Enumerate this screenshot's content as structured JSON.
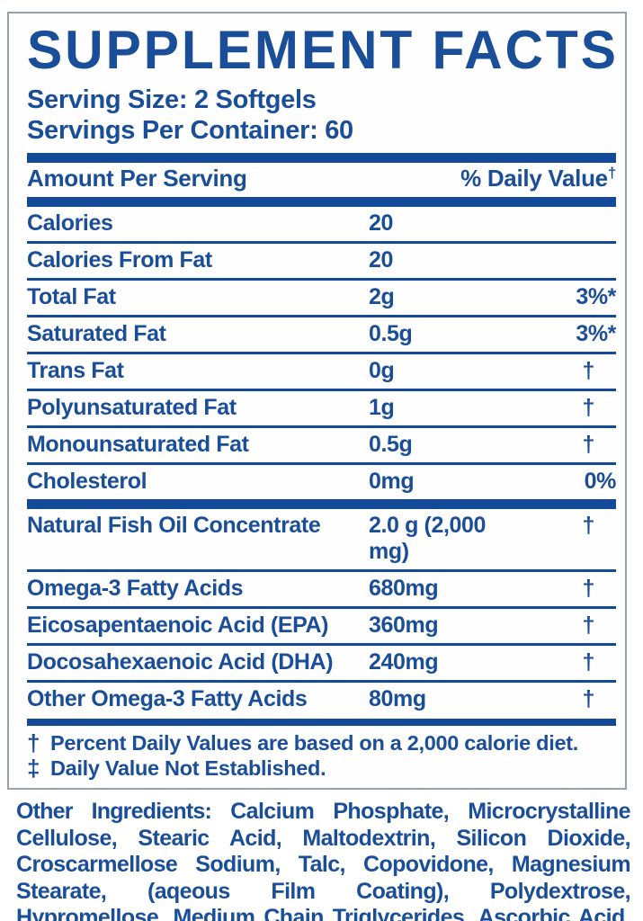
{
  "colors": {
    "accent_blue": "#1b4e98",
    "rule_blue": "#134a97",
    "border_gray": "#98a0ac",
    "background": "#ffffff"
  },
  "label": {
    "title": "SUPPLEMENT FACTS",
    "serving_size": "Serving Size: 2 Softgels",
    "servings_per_container": "Servings Per Container: 60",
    "columns": {
      "amount_header": "Amount Per Serving",
      "daily_value_header": "% Daily Value",
      "daily_value_header_symbol": "†"
    },
    "rows": [
      {
        "name": "Calories",
        "amount": "20",
        "dv": ""
      },
      {
        "name": "Calories From Fat",
        "amount": "20",
        "dv": ""
      },
      {
        "name": "Total Fat",
        "amount": "2g",
        "dv": "3%*"
      },
      {
        "name": "Saturated Fat",
        "amount": "0.5g",
        "dv": "3%*"
      },
      {
        "name": "Trans Fat",
        "amount": "0g",
        "dv": "†"
      },
      {
        "name": "Polyunsaturated Fat",
        "amount": "1g",
        "dv": "†"
      },
      {
        "name": "Monounsaturated Fat",
        "amount": "0.5g",
        "dv": "†"
      },
      {
        "name": "Cholesterol",
        "amount": "0mg",
        "dv": "0%"
      },
      {
        "name": "Natural Fish Oil Concentrate",
        "amount": "2.0 g (2,000 mg)",
        "dv": "†"
      },
      {
        "name": "Omega-3 Fatty Acids",
        "amount": "680mg",
        "dv": "†"
      },
      {
        "name": "Eicosapentaenoic Acid (EPA)",
        "amount": "360mg",
        "dv": "†"
      },
      {
        "name": "Docosahexaenoic Acid (DHA)",
        "amount": "240mg",
        "dv": "†"
      },
      {
        "name": "Other Omega-3 Fatty Acids",
        "amount": "80mg",
        "dv": "†"
      }
    ],
    "footnotes": [
      {
        "symbol": "†",
        "text": "Percent Daily Values are based on a 2,000 calorie diet."
      },
      {
        "symbol": "‡",
        "text": "Daily Value Not Established."
      }
    ],
    "other_ingredients": {
      "label": "Other Ingredients:",
      "text": "Calcium Phosphate, Microcrystalline Cellulose, Stearic Acid, Maltodextrin, Silicon Dioxide, Croscarmellose Sodium, Talc, Copovidone, Magnesium Stearate, (aqeous Film Coating), Polydextrose, Hypromellose, Medium Chain Triglycerides, Ascorbic Acid, Riboflavin &amp; Pyridoxine HCL."
    }
  }
}
